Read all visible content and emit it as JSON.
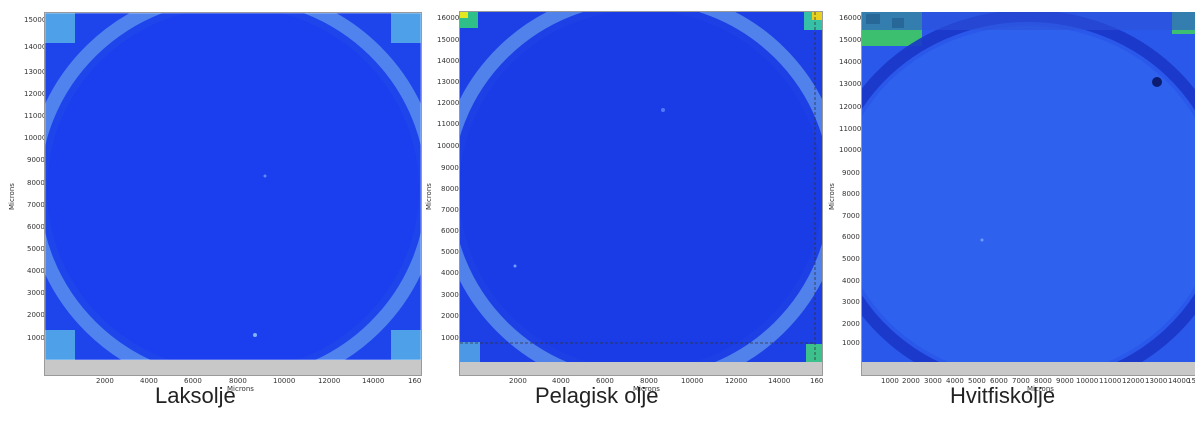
{
  "images": [
    {
      "caption": "Laksolje",
      "ylabel": "Microns",
      "xlabel": "Microns",
      "yticks": [
        "15000",
        "14000",
        "13000",
        "12000",
        "11000",
        "10000",
        "9000",
        "8000",
        "7000",
        "6000",
        "5000",
        "4000",
        "3000",
        "2000",
        "1000"
      ],
      "xticks": [
        "2000",
        "4000",
        "6000",
        "8000",
        "10000",
        "12000",
        "14000",
        "160"
      ]
    },
    {
      "caption": "Pelagisk olje",
      "ylabel": "Microns",
      "xlabel": "Microns",
      "yticks": [
        "16000",
        "15000",
        "14000",
        "13000",
        "12000",
        "11000",
        "10000",
        "9000",
        "8000",
        "7000",
        "6000",
        "5000",
        "4000",
        "3000",
        "2000",
        "1000"
      ],
      "xticks": [
        "2000",
        "4000",
        "6000",
        "8000",
        "10000",
        "12000",
        "14000",
        "160"
      ]
    },
    {
      "caption": "Hvitfiskolje",
      "ylabel": "Microns",
      "xlabel": "Microns",
      "yticks": [
        "16000",
        "15000",
        "14000",
        "13000",
        "12000",
        "11000",
        "10000",
        "9000",
        "8000",
        "7000",
        "6000",
        "5000",
        "4000",
        "3000",
        "2000",
        "1000"
      ],
      "xticks": [
        "1000",
        "2000",
        "3000",
        "4000",
        "5000",
        "6000",
        "7000",
        "8000",
        "9000",
        "10000",
        "11000",
        "12000",
        "13000",
        "14000",
        "15"
      ]
    }
  ],
  "colors": {
    "well": "#1a3df0",
    "ring": "#5a8ef0",
    "corner": "#3fd0c8",
    "hot": "#e8e020",
    "frame": "#c8c8c8"
  }
}
